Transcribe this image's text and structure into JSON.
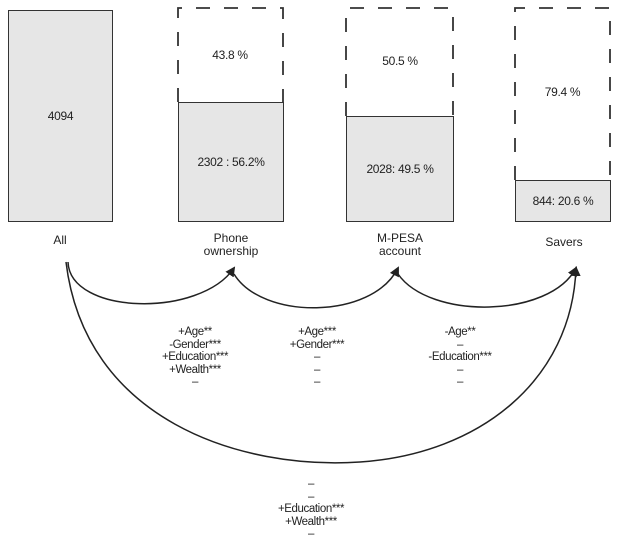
{
  "bars": [
    {
      "label": "All",
      "value_text": "4094",
      "share": 1.0
    },
    {
      "label_lines": [
        "Phone",
        "ownership"
      ],
      "value_text": "2302 : 56.2%",
      "missing_text": "43.8 %",
      "share": 0.562
    },
    {
      "label_lines": [
        "M-PESA",
        "account"
      ],
      "value_text": "2028: 49.5 %",
      "missing_text": "50.5 %",
      "share": 0.495
    },
    {
      "label": "Savers",
      "value_text": "844: 20.6 %",
      "missing_text": "79.4 %",
      "share": 0.206
    }
  ],
  "effects": {
    "all_to_phone": [
      "+Age**",
      "-Gender***",
      "+Education***",
      "+Wealth***",
      "–"
    ],
    "phone_to_mpesa": [
      "+Age***",
      "+Gender***",
      "–",
      "–",
      "–"
    ],
    "mpesa_to_savers": [
      "-Age**",
      "–",
      "-Education***",
      "–",
      "–"
    ],
    "all_to_savers": [
      "–",
      "–",
      "+Education***",
      "+Wealth***",
      "–"
    ]
  }
}
